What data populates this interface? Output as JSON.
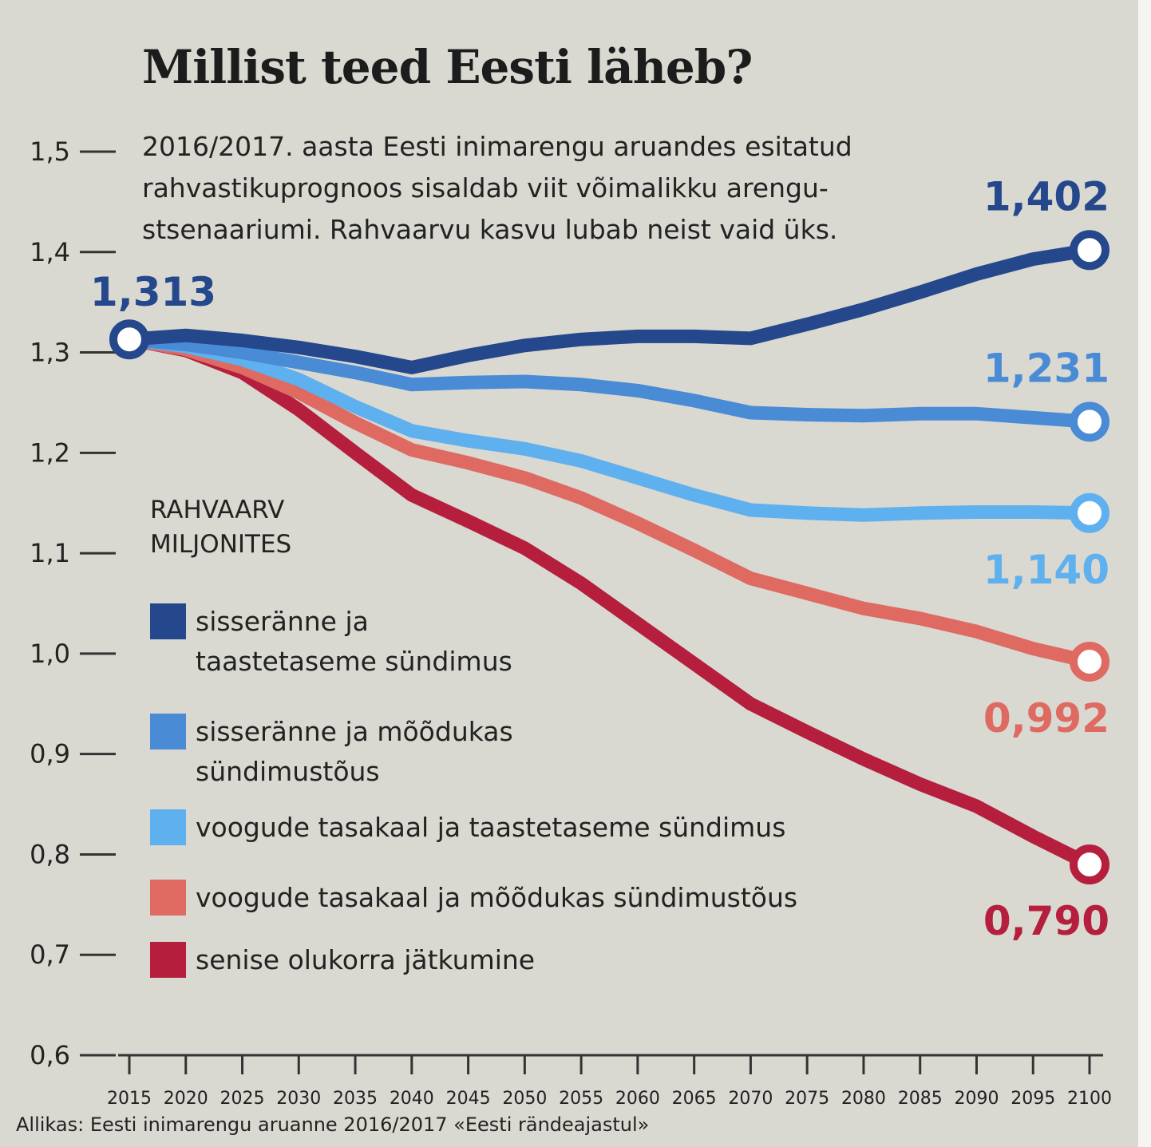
{
  "title": "Millist teed Eesti läheb?",
  "subtitle_lines": [
    "2016/2017. aasta Eesti inimarengu aruandes esitatud",
    "rahvastikuprognoos sisaldab viit võimalikku arengu-",
    "stsenaariumi. Rahvaarvu kasvu lubab neist vaid üks."
  ],
  "unit_label_lines": [
    "RAHVAARV",
    "MILJONITES"
  ],
  "source": "Allikas: Eesti inimarengu aruanne 2016/2017 «Eesti rändeajastul»",
  "chart_data": {
    "type": "line",
    "title": "Millist teed Eesti läheb?",
    "ylabel": "RAHVAARV MILJONITES",
    "xlabel": "",
    "ylim": [
      0.6,
      1.5
    ],
    "yticks": [
      0.6,
      0.7,
      0.8,
      0.9,
      1.0,
      1.1,
      1.2,
      1.3,
      1.4,
      1.5
    ],
    "ytick_labels": [
      "0,6",
      "0,7",
      "0,8",
      "0,9",
      "1,0",
      "1,1",
      "1,2",
      "1,3",
      "1,4",
      "1,5"
    ],
    "x": [
      2015,
      2020,
      2025,
      2030,
      2035,
      2040,
      2045,
      2050,
      2055,
      2060,
      2065,
      2070,
      2075,
      2080,
      2085,
      2090,
      2095,
      2100
    ],
    "xtick_labels": [
      "2015",
      "2020",
      "2025",
      "2030",
      "2035",
      "2040",
      "2045",
      "2050",
      "2055",
      "2060",
      "2065",
      "2070",
      "2075",
      "2080",
      "2085",
      "2090",
      "2095",
      "2100"
    ],
    "start_label": "1,313",
    "start_color": "#24488b",
    "series": [
      {
        "name": "sisseränne ja taastetaseme sündimus",
        "legend_lines": [
          "sisseränne ja",
          "taastetaseme sündimus"
        ],
        "color": "#24488b",
        "end_label": "1,402",
        "label_pos": "above",
        "x": [
          2015,
          2020,
          2025,
          2030,
          2035,
          2040,
          2045,
          2050,
          2055,
          2060,
          2065,
          2070,
          2075,
          2080,
          2085,
          2090,
          2095,
          2100
        ],
        "values": [
          1.313,
          1.317,
          1.312,
          1.305,
          1.296,
          1.285,
          1.297,
          1.307,
          1.313,
          1.316,
          1.316,
          1.314,
          1.328,
          1.343,
          1.36,
          1.378,
          1.393,
          1.402
        ]
      },
      {
        "name": "sisseränne ja mõõdukas sündimustõus",
        "legend_lines": [
          "sisseränne ja mõõdukas",
          "sündimustõus"
        ],
        "color": "#4a8bd6",
        "end_label": "1,231",
        "label_pos": "above",
        "x": [
          2015,
          2020,
          2025,
          2030,
          2035,
          2040,
          2045,
          2050,
          2055,
          2060,
          2065,
          2070,
          2075,
          2080,
          2085,
          2090,
          2095,
          2100
        ],
        "values": [
          1.313,
          1.308,
          1.3,
          1.29,
          1.28,
          1.268,
          1.27,
          1.271,
          1.268,
          1.262,
          1.252,
          1.24,
          1.238,
          1.237,
          1.239,
          1.239,
          1.235,
          1.231
        ]
      },
      {
        "name": "voogude tasakaal ja taastetaseme sündimus",
        "legend_lines": [
          "voogude tasakaal ja taastetaseme sündimus"
        ],
        "color": "#5fb0ee",
        "end_label": "1,140",
        "label_pos": "below",
        "x": [
          2015,
          2020,
          2025,
          2030,
          2035,
          2040,
          2045,
          2050,
          2055,
          2060,
          2065,
          2070,
          2075,
          2080,
          2085,
          2090,
          2095,
          2100
        ],
        "values": [
          1.313,
          1.306,
          1.293,
          1.273,
          1.246,
          1.222,
          1.212,
          1.204,
          1.192,
          1.175,
          1.158,
          1.143,
          1.14,
          1.138,
          1.14,
          1.141,
          1.141,
          1.14
        ]
      },
      {
        "name": "voogude tasakaal ja mõõdukas sündimustõus",
        "legend_lines": [
          "voogude tasakaal ja mõõdukas sündimustõus"
        ],
        "color": "#de6a62",
        "end_label": "0,992",
        "label_pos": "below",
        "x": [
          2015,
          2020,
          2025,
          2030,
          2035,
          2040,
          2045,
          2050,
          2055,
          2060,
          2065,
          2070,
          2075,
          2080,
          2085,
          2090,
          2095,
          2100
        ],
        "values": [
          1.313,
          1.303,
          1.285,
          1.26,
          1.23,
          1.203,
          1.19,
          1.175,
          1.155,
          1.13,
          1.103,
          1.075,
          1.06,
          1.045,
          1.035,
          1.022,
          1.005,
          0.992
        ]
      },
      {
        "name": "senise olukorra jätkumine",
        "legend_lines": [
          "senise olukorra jätkumine"
        ],
        "color": "#b51e3c",
        "end_label": "0,790",
        "label_pos": "below",
        "x": [
          2015,
          2020,
          2025,
          2030,
          2035,
          2040,
          2045,
          2050,
          2055,
          2060,
          2065,
          2070,
          2075,
          2080,
          2085,
          2090,
          2095,
          2100
        ],
        "values": [
          1.313,
          1.302,
          1.28,
          1.243,
          1.2,
          1.158,
          1.132,
          1.105,
          1.07,
          1.03,
          0.99,
          0.95,
          0.922,
          0.895,
          0.87,
          0.848,
          0.818,
          0.79
        ]
      }
    ]
  }
}
